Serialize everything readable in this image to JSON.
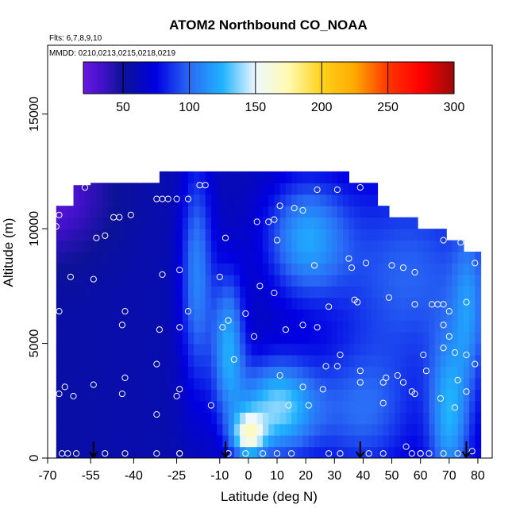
{
  "chart_data": {
    "type": "heatmap",
    "title": "ATOM2 Northbound CO_NOAA",
    "flights_label": "Flts: 6,7,8,9,10",
    "dates_label": "MMDD: 0210,0213,0215,0218,0219",
    "xlabel": "Latitude (deg N)",
    "ylabel": "Altitude (m)",
    "xlim": [
      -70,
      85
    ],
    "ylim": [
      0,
      18000
    ],
    "x_ticks": [
      -70,
      -55,
      -40,
      -25,
      -10,
      0,
      10,
      20,
      30,
      40,
      50,
      60,
      70,
      80
    ],
    "x_tick_labels": [
      "-70",
      "-55",
      "-40",
      "-25",
      "-10",
      "0",
      "10",
      "20",
      "30",
      "40",
      "50",
      "60",
      "70",
      "80"
    ],
    "y_ticks": [
      0,
      5000,
      10000,
      15000
    ],
    "y_tick_labels": [
      "0",
      "5000",
      "10000",
      "15000"
    ],
    "colorbar": {
      "range": [
        20,
        300
      ],
      "ticks": [
        50,
        100,
        150,
        200,
        250,
        300
      ],
      "tick_labels": [
        "50",
        "100",
        "150",
        "200",
        "250",
        "300"
      ],
      "colors": [
        [
          20,
          "#6a16e0"
        ],
        [
          35,
          "#3f11c8"
        ],
        [
          50,
          "#0c1296"
        ],
        [
          75,
          "#0000e2"
        ],
        [
          100,
          "#2a6af5"
        ],
        [
          125,
          "#1fb2ff"
        ],
        [
          150,
          "#eef8ff"
        ],
        [
          175,
          "#fffab0"
        ],
        [
          200,
          "#ffd21c"
        ],
        [
          225,
          "#ffa800"
        ],
        [
          250,
          "#ff3500"
        ],
        [
          275,
          "#ff0000"
        ],
        [
          300,
          "#9a0a0a"
        ]
      ]
    },
    "surface_arrows_lat": [
      -54,
      -8,
      39,
      76
    ],
    "observations": [
      [
        -67,
        10100
      ],
      [
        -66,
        10600
      ],
      [
        -62,
        7900
      ],
      [
        -66,
        6400
      ],
      [
        -66,
        2800
      ],
      [
        -64,
        3100
      ],
      [
        -61,
        2700
      ],
      [
        -65,
        200
      ],
      [
        -63,
        200
      ],
      [
        -60,
        200
      ],
      [
        -57,
        11800
      ],
      [
        -53,
        9600
      ],
      [
        -54,
        7800
      ],
      [
        -50,
        9700
      ],
      [
        -47,
        10500
      ],
      [
        -45,
        10500
      ],
      [
        -41,
        10600
      ],
      [
        -43,
        6400
      ],
      [
        -44,
        5800
      ],
      [
        -43,
        3500
      ],
      [
        -44,
        2800
      ],
      [
        -54,
        3200
      ],
      [
        -50,
        200
      ],
      [
        -43,
        200
      ],
      [
        -32,
        11300
      ],
      [
        -30,
        11300
      ],
      [
        -28,
        11300
      ],
      [
        -25,
        11300
      ],
      [
        -21,
        11300
      ],
      [
        -17,
        11900
      ],
      [
        -15,
        11900
      ],
      [
        -30,
        8000
      ],
      [
        -24,
        8200
      ],
      [
        -31,
        5600
      ],
      [
        -24,
        5700
      ],
      [
        -21,
        6400
      ],
      [
        -32,
        4100
      ],
      [
        -24,
        3000
      ],
      [
        -25,
        2700
      ],
      [
        -32,
        1900
      ],
      [
        -32,
        200
      ],
      [
        -24,
        200
      ],
      [
        -24,
        200
      ],
      [
        -10,
        7900
      ],
      [
        -7,
        6000
      ],
      [
        -9,
        5700
      ],
      [
        -8,
        9600
      ],
      [
        -13,
        2300
      ],
      [
        -7,
        200
      ],
      [
        -1,
        6300
      ],
      [
        2,
        5300
      ],
      [
        3,
        10300
      ],
      [
        7,
        10300
      ],
      [
        9,
        10400
      ],
      [
        11,
        11000
      ],
      [
        16,
        10900
      ],
      [
        19,
        10800
      ],
      [
        10,
        9500
      ],
      [
        4,
        7500
      ],
      [
        9,
        7200
      ],
      [
        13,
        5600
      ],
      [
        19,
        5800
      ],
      [
        24,
        5700
      ],
      [
        -5,
        4300
      ],
      [
        11,
        3600
      ],
      [
        19,
        3100
      ],
      [
        14,
        2300
      ],
      [
        21,
        2300
      ],
      [
        26,
        3000
      ],
      [
        32,
        4500
      ],
      [
        27,
        4000
      ],
      [
        31,
        4000
      ],
      [
        24,
        11700
      ],
      [
        31,
        11700
      ],
      [
        39,
        11800
      ],
      [
        23,
        8400
      ],
      [
        35,
        8700
      ],
      [
        36,
        8300
      ],
      [
        41,
        8500
      ],
      [
        50,
        8400
      ],
      [
        54,
        8300
      ],
      [
        58,
        8100
      ],
      [
        68,
        9500
      ],
      [
        74,
        9400
      ],
      [
        79,
        8500
      ],
      [
        28,
        6600
      ],
      [
        37,
        6900
      ],
      [
        38,
        6800
      ],
      [
        49,
        7000
      ],
      [
        58,
        6700
      ],
      [
        64,
        6700
      ],
      [
        66,
        6700
      ],
      [
        68,
        6700
      ],
      [
        70,
        6400
      ],
      [
        76,
        6800
      ],
      [
        68,
        5800
      ],
      [
        70,
        5300
      ],
      [
        72,
        4600
      ],
      [
        68,
        4800
      ],
      [
        76,
        4500
      ],
      [
        79,
        4100
      ],
      [
        61,
        4500
      ],
      [
        62,
        3800
      ],
      [
        48,
        3500
      ],
      [
        52,
        3600
      ],
      [
        54,
        3300
      ],
      [
        57,
        2900
      ],
      [
        58,
        2800
      ],
      [
        67,
        2600
      ],
      [
        72,
        2200
      ],
      [
        73,
        3400
      ],
      [
        76,
        2900
      ],
      [
        39,
        3800
      ],
      [
        39,
        3300
      ],
      [
        47,
        3300
      ],
      [
        47,
        2400
      ],
      [
        5,
        200
      ],
      [
        -1,
        200
      ],
      [
        10,
        200
      ],
      [
        15,
        200
      ],
      [
        28,
        200
      ],
      [
        32,
        200
      ],
      [
        42,
        200
      ],
      [
        47,
        200
      ],
      [
        57,
        200
      ],
      [
        60,
        200
      ],
      [
        63,
        200
      ],
      [
        68,
        200
      ],
      [
        73,
        200
      ],
      [
        78,
        300
      ],
      [
        55,
        500
      ],
      [
        60,
        200
      ]
    ]
  }
}
